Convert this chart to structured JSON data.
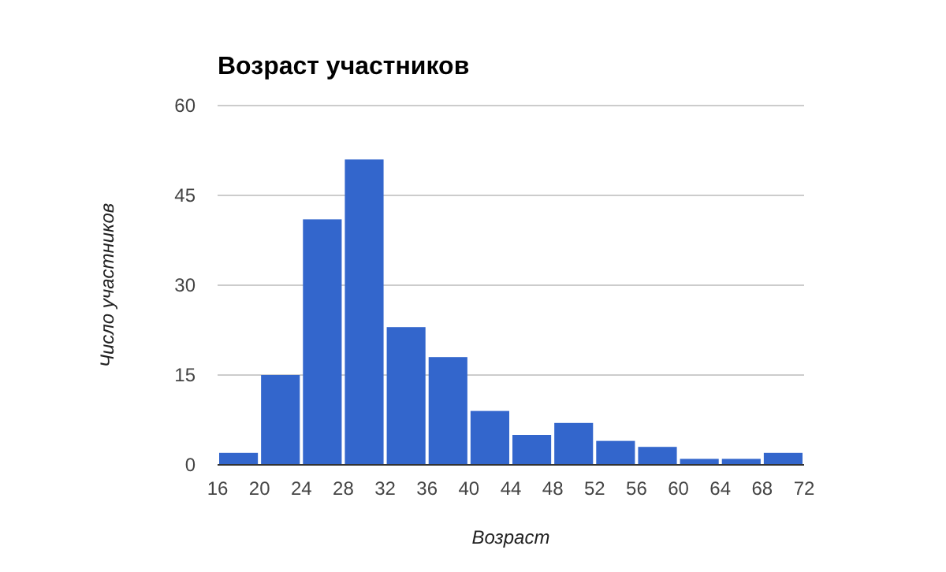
{
  "chart_data": {
    "type": "histogram",
    "title": "Возраст участников",
    "xlabel": "Возраст",
    "ylabel": "Число участников",
    "bins": [
      16,
      20,
      24,
      28,
      32,
      36,
      40,
      44,
      48,
      52,
      56,
      60,
      64,
      68,
      72
    ],
    "values": [
      2,
      15,
      41,
      51,
      23,
      18,
      9,
      5,
      7,
      4,
      3,
      1,
      1,
      2
    ],
    "color": "#3366cc",
    "xlim": [
      16,
      72
    ],
    "xticks": [
      16,
      20,
      24,
      28,
      32,
      36,
      40,
      44,
      48,
      52,
      56,
      60,
      64,
      68,
      72
    ],
    "ylim": [
      0,
      60
    ],
    "yticks": [
      0,
      15,
      30,
      45,
      60
    ],
    "grid": "y"
  }
}
